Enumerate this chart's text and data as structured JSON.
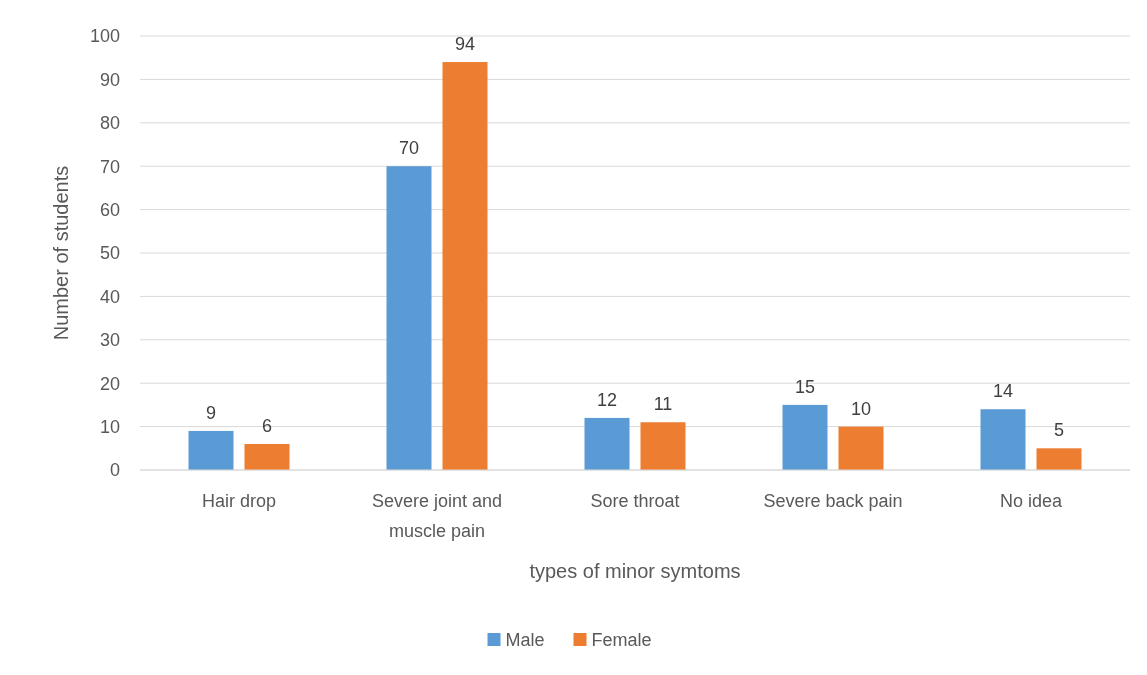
{
  "chart_data": {
    "type": "bar",
    "xlabel": "types of minor symtoms",
    "ylabel": "Number of students",
    "categories": [
      "Hair drop",
      "Severe joint and muscle pain",
      "Sore throat",
      "Severe back pain",
      "No idea"
    ],
    "series": [
      {
        "name": "Male",
        "color": "#5b9bd5",
        "values": [
          9,
          70,
          12,
          15,
          14
        ]
      },
      {
        "name": "Female",
        "color": "#ed7d31",
        "values": [
          6,
          94,
          11,
          10,
          5
        ]
      }
    ],
    "ylim": [
      0,
      100
    ],
    "yticks": [
      0,
      10,
      20,
      30,
      40,
      50,
      60,
      70,
      80,
      90,
      100
    ],
    "grid": "y",
    "legend": "bottom",
    "data_labels": true
  }
}
